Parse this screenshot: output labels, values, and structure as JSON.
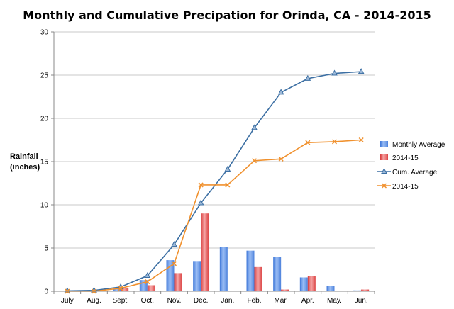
{
  "chart_data": {
    "type": "bar",
    "title": "Monthly and Cumulative Precipation for Orinda, CA - 2014-2015",
    "xlabel": "",
    "ylabel_line1": "Rainfall",
    "ylabel_line2": "(inches)",
    "ylim": [
      0,
      30
    ],
    "yticks": [
      0,
      5,
      10,
      15,
      20,
      25,
      30
    ],
    "grid": true,
    "legend_position": "right",
    "categories": [
      "July",
      "Aug.",
      "Sept.",
      "Oct.",
      "Nov.",
      "Dec.",
      "Jan.",
      "Feb.",
      "Mar.",
      "Apr.",
      "May.",
      "Jun."
    ],
    "series": [
      {
        "name": "Monthly Average",
        "kind": "bar",
        "color": "#5b8fe6",
        "values": [
          0.02,
          0.05,
          0.3,
          1.3,
          3.6,
          3.5,
          5.1,
          4.7,
          4.0,
          1.6,
          0.6,
          0.1
        ]
      },
      {
        "name": "2014-15",
        "kind": "bar",
        "color": "#e84b4b",
        "values": [
          0.02,
          0.0,
          0.35,
          0.7,
          2.1,
          9.0,
          0.0,
          2.8,
          0.2,
          1.8,
          0.05,
          0.2
        ]
      },
      {
        "name": "Cum. Average",
        "kind": "line",
        "marker": "triangle",
        "color": "#3c6fa3",
        "values": [
          0.05,
          0.1,
          0.5,
          1.8,
          5.4,
          10.2,
          14.1,
          18.9,
          23.0,
          24.6,
          25.2,
          25.4
        ]
      },
      {
        "name": "2014-15",
        "kind": "line",
        "marker": "x",
        "color": "#f0912e",
        "values": [
          0.0,
          0.0,
          0.35,
          1.1,
          3.2,
          12.3,
          12.3,
          15.1,
          15.3,
          17.2,
          17.3,
          17.5
        ]
      }
    ]
  }
}
